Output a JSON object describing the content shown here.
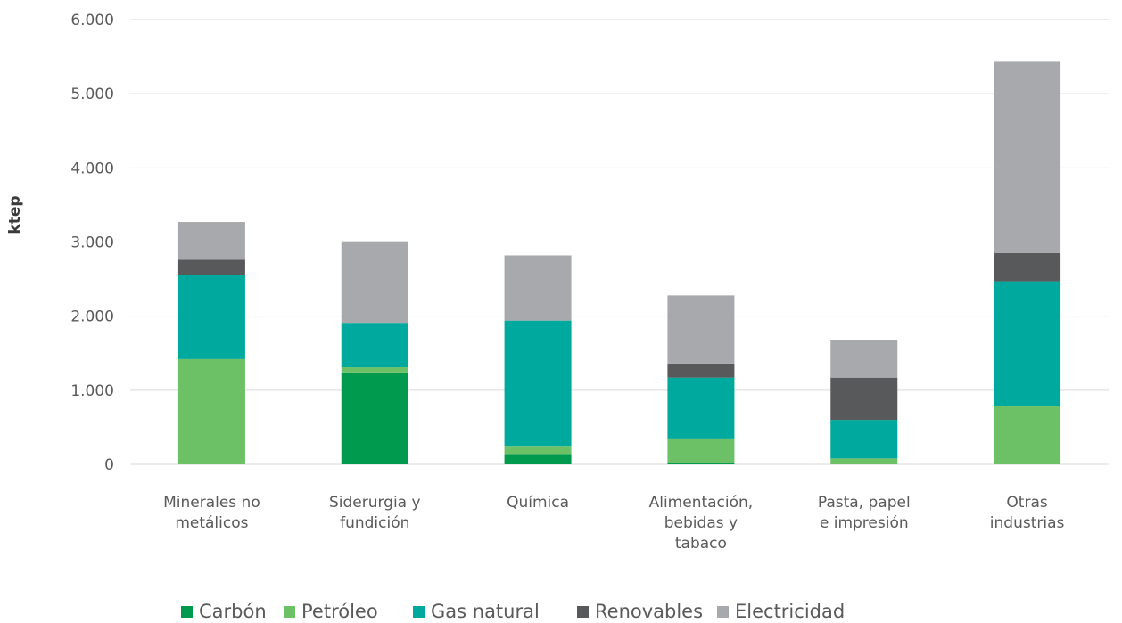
{
  "chart_data": {
    "type": "bar",
    "stacked": true,
    "ylabel": "ktep",
    "ylim": [
      0,
      6000
    ],
    "yticks": [
      0,
      1000,
      2000,
      3000,
      4000,
      5000,
      6000
    ],
    "ytick_labels": [
      "0",
      "1.000",
      "2.000",
      "3.000",
      "4.000",
      "5.000",
      "6.000"
    ],
    "grid": "horizontal",
    "legend_position": "bottom",
    "categories": [
      [
        "Minerales no",
        "metálicos"
      ],
      [
        "Siderurgia y",
        "fundición"
      ],
      [
        "Química"
      ],
      [
        "Alimentación,",
        "bebidas y",
        "tabaco"
      ],
      [
        "Pasta, papel",
        "e impresión"
      ],
      [
        "Otras",
        "industrias"
      ]
    ],
    "series": [
      {
        "name": "Carbón",
        "color": "#009a4e",
        "values": [
          0,
          1240,
          140,
          20,
          0,
          0
        ]
      },
      {
        "name": "Petróleo",
        "color": "#6cc066",
        "values": [
          1420,
          70,
          110,
          330,
          80,
          790
        ]
      },
      {
        "name": "Gas natural",
        "color": "#00a99d",
        "values": [
          1130,
          600,
          1690,
          820,
          520,
          1680
        ]
      },
      {
        "name": "Renovables",
        "color": "#58595b",
        "values": [
          210,
          0,
          0,
          190,
          570,
          380
        ]
      },
      {
        "name": "Electricidad",
        "color": "#a7a9ac",
        "values": [
          510,
          1100,
          880,
          920,
          510,
          2580
        ]
      }
    ]
  }
}
